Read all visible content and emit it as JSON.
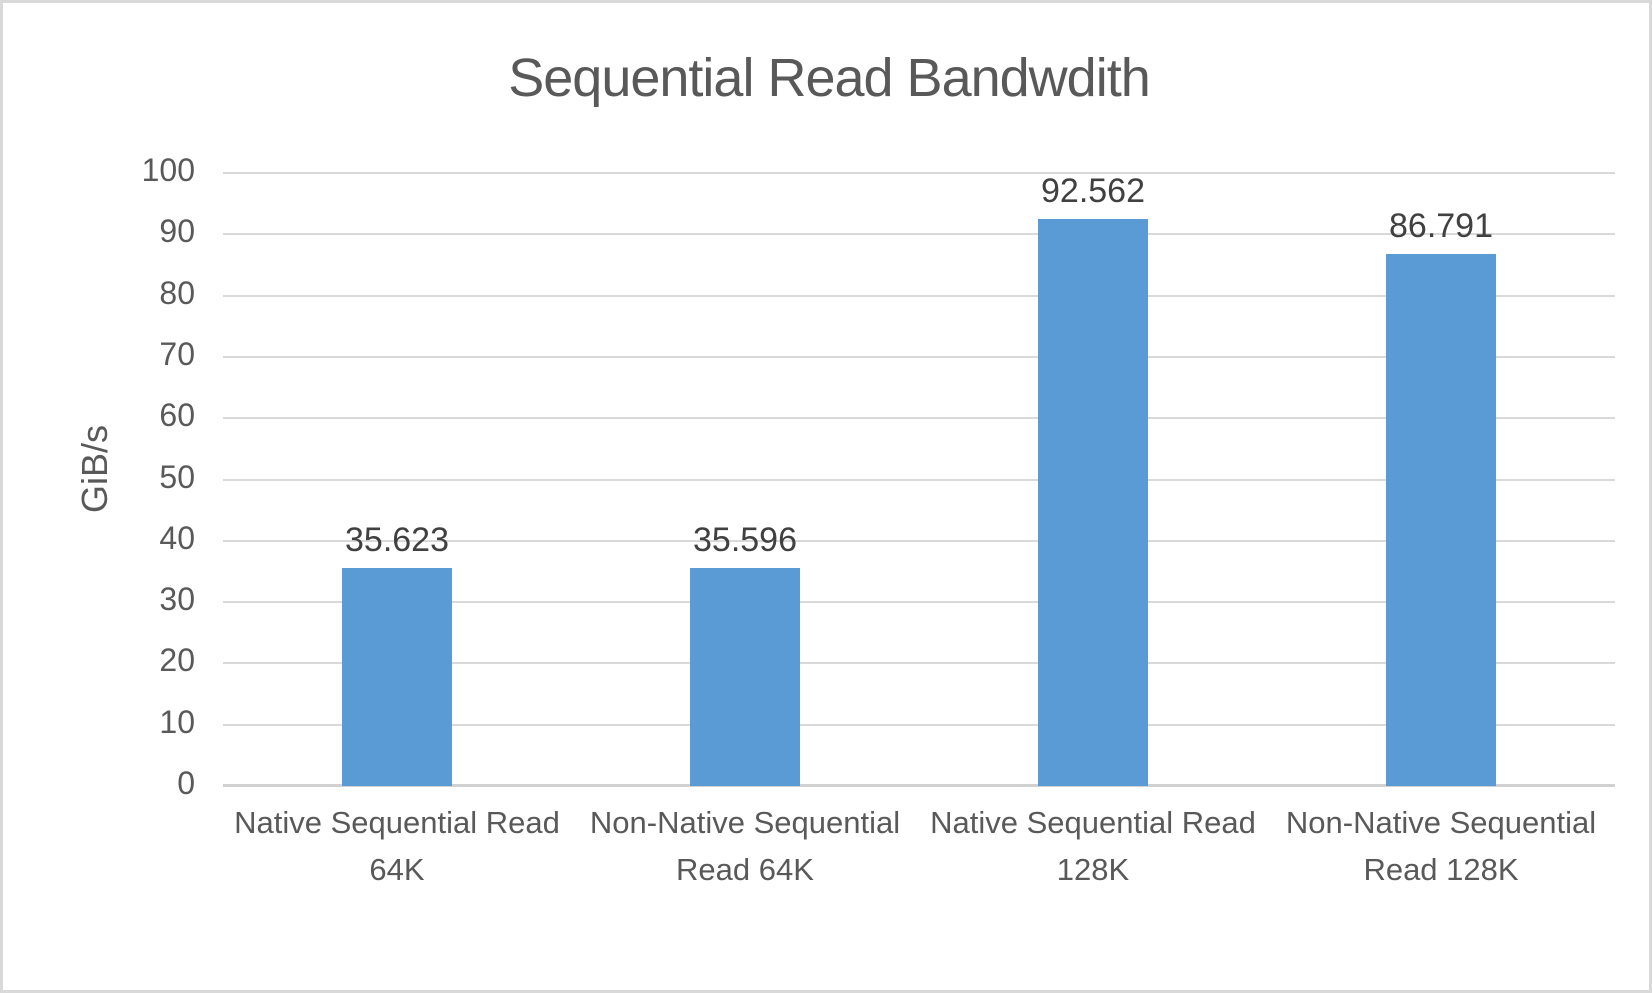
{
  "chart": {
    "title": "Sequential Read Bandwdith",
    "y_axis_title": "GiB/s"
  },
  "chart_data": {
    "type": "bar",
    "title": "Sequential Read Bandwdith",
    "xlabel": "",
    "ylabel": "GiB/s",
    "categories": [
      "Native Sequential Read 64K",
      "Non-Native Sequential Read 64K",
      "Native Sequential Read 128K",
      "Non-Native Sequential Read 128K"
    ],
    "values": [
      35.623,
      35.596,
      92.562,
      86.791
    ],
    "data_labels": [
      "35.623",
      "35.596",
      "92.562",
      "86.791"
    ],
    "ylim": [
      0,
      100
    ],
    "ytick_step": 10,
    "ytick_labels": [
      "0",
      "10",
      "20",
      "30",
      "40",
      "50",
      "60",
      "70",
      "80",
      "90",
      "100"
    ],
    "grid": true,
    "legend": null,
    "bar_color": "#5B9BD5",
    "text_color": "#595959",
    "data_label_color": "#404040",
    "gridline_color": "#D9D9D9"
  }
}
